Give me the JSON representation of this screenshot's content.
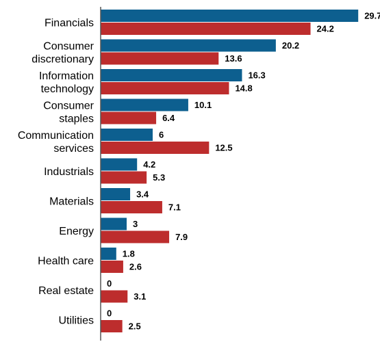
{
  "chart_data": {
    "type": "bar",
    "orientation": "horizontal",
    "title": "",
    "xlabel": "",
    "ylabel": "",
    "grid": false,
    "legend": "none",
    "xlim": [
      0,
      30
    ],
    "categories": [
      [
        "Financials"
      ],
      [
        "Consumer",
        "discretionary"
      ],
      [
        "Information",
        "technology"
      ],
      [
        "Consumer",
        "staples"
      ],
      [
        "Communication",
        "services"
      ],
      [
        "Industrials"
      ],
      [
        "Materials"
      ],
      [
        "Energy"
      ],
      [
        "Health care"
      ],
      [
        "Real estate"
      ],
      [
        "Utilities"
      ]
    ],
    "series": [
      {
        "color": "#0d5f8f",
        "values": [
          29.7,
          20.2,
          16.3,
          10.1,
          6,
          4.2,
          3.4,
          3,
          1.8,
          0,
          0
        ]
      },
      {
        "color": "#bd2d2d",
        "values": [
          24.2,
          13.6,
          14.8,
          6.4,
          12.5,
          5.3,
          7.1,
          7.9,
          2.6,
          3.1,
          2.5
        ]
      }
    ],
    "axis_color": "#555555"
  }
}
